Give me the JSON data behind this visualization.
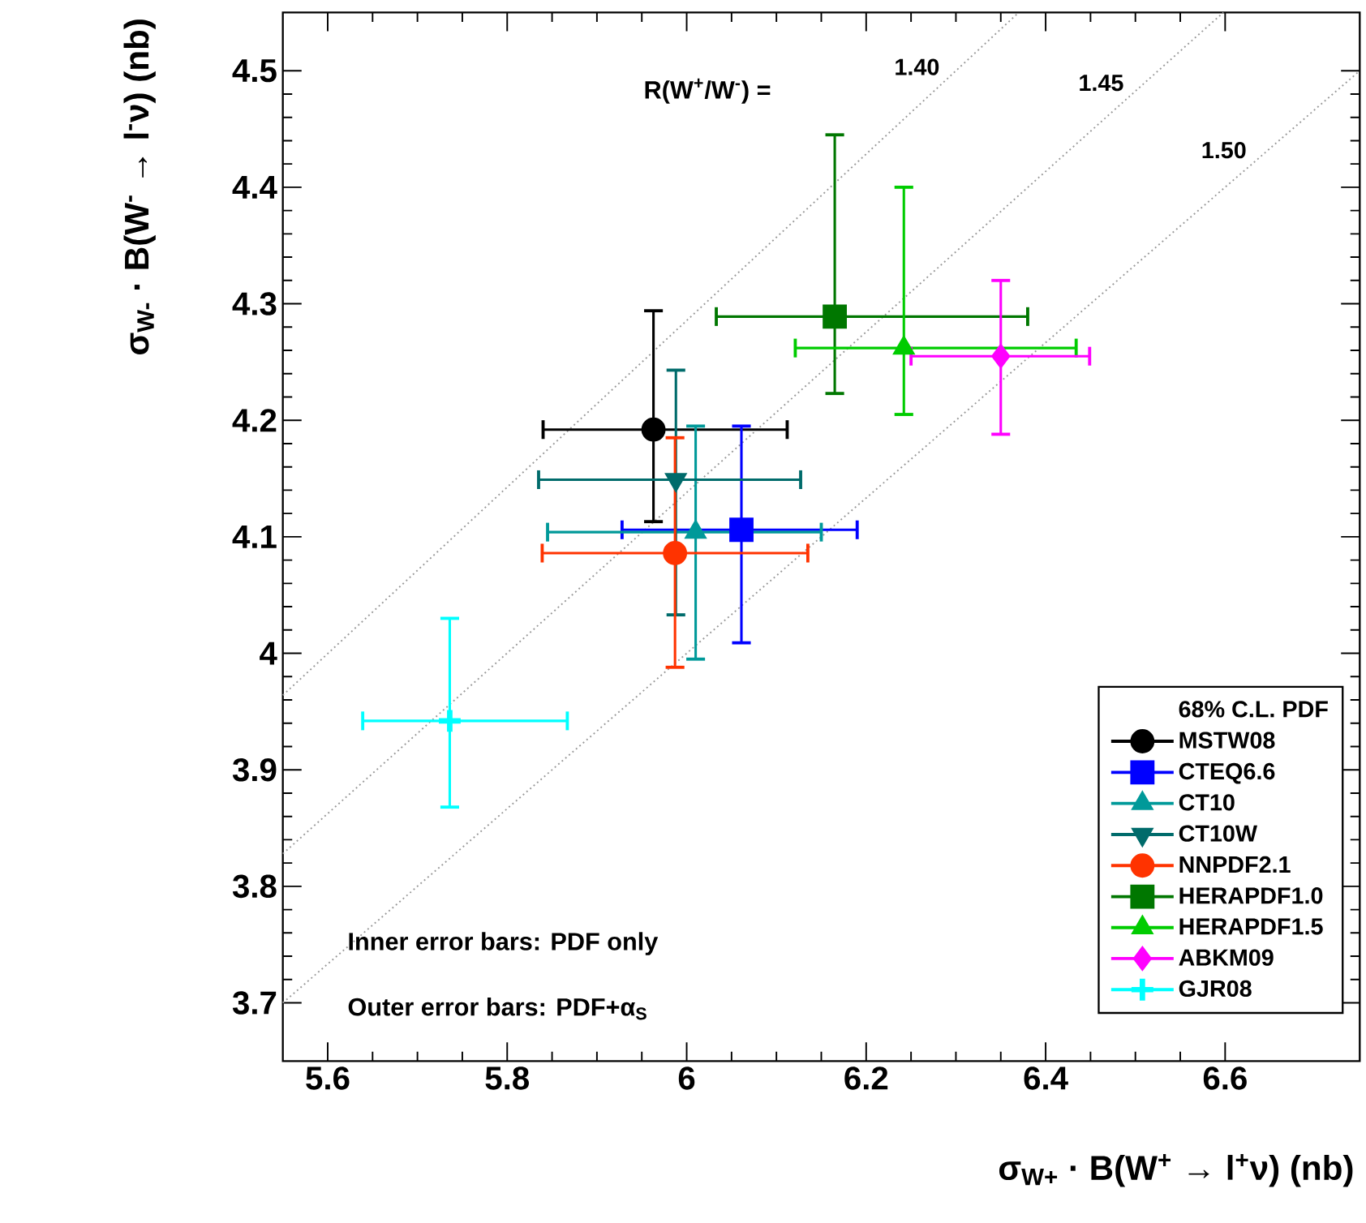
{
  "chart_data": {
    "type": "scatter",
    "xlabel": "σ$_{W+}$ · B(W$^{+}$ → l$^{+}$ν)  (nb)",
    "ylabel": "σ$_{W-}$ · B(W$^{-}$ → l$^{-}$ν)  (nb)",
    "xlim": [
      5.55,
      6.75
    ],
    "ylim": [
      3.65,
      4.55
    ],
    "xticks": [
      5.6,
      5.8,
      6,
      6.2,
      6.4,
      6.6
    ],
    "yticks": [
      3.7,
      3.8,
      3.9,
      4,
      4.1,
      4.2,
      4.3,
      4.4,
      4.5
    ],
    "grid": false,
    "legend": "bottom right",
    "legend_title": "68% C.L. PDF",
    "annotations": [
      "R(W$^{+}$/W$^{-}$) =",
      "Inner error bars: PDF only",
      "Outer error bars: PDF+α$_{S}$"
    ],
    "series": [
      {
        "name": "1.40",
        "type": "line",
        "color": "#999999",
        "line_style": "dotted",
        "marker": "none",
        "x": [
          5.55,
          6.37
        ],
        "values": [
          3.964,
          4.55
        ]
      },
      {
        "name": "1.45",
        "type": "line",
        "color": "#999999",
        "line_style": "dotted",
        "marker": "none",
        "x": [
          5.55,
          6.598
        ],
        "values": [
          3.828,
          4.55
        ]
      },
      {
        "name": "1.50",
        "type": "line",
        "color": "#999999",
        "line_style": "dotted",
        "marker": "none",
        "x": [
          5.55,
          6.75
        ],
        "values": [
          3.7,
          4.5
        ]
      },
      {
        "name": "MSTW08",
        "color": "#000000",
        "marker": "circle",
        "x": [
          5.963
        ],
        "values": [
          4.192
        ],
        "xerrors": [
          [
            5.84,
            6.112
          ]
        ],
        "errors": [
          [
            4.113,
            4.294
          ]
        ]
      },
      {
        "name": "CTEQ6.6",
        "color": "#0000ff",
        "marker": "square",
        "x": [
          6.061
        ],
        "values": [
          4.106
        ],
        "xerrors": [
          [
            5.928,
            6.19
          ]
        ],
        "errors": [
          [
            4.009,
            4.195
          ]
        ]
      },
      {
        "name": "CT10",
        "color": "#009999",
        "marker": "triangle",
        "x": [
          6.01
        ],
        "values": [
          4.104
        ],
        "xerrors": [
          [
            5.845,
            6.15
          ]
        ],
        "errors": [
          [
            3.995,
            4.195
          ]
        ]
      },
      {
        "name": "CT10W",
        "color": "#006b6b",
        "marker": "triangle-down",
        "x": [
          5.988
        ],
        "values": [
          4.149
        ],
        "xerrors": [
          [
            5.835,
            6.127
          ]
        ],
        "errors": [
          [
            4.033,
            4.243
          ]
        ]
      },
      {
        "name": "NNPDF2.1",
        "color": "#ff3300",
        "marker": "circle",
        "x": [
          5.987
        ],
        "values": [
          4.086
        ],
        "xerrors": [
          [
            5.839,
            6.135
          ]
        ],
        "errors": [
          [
            3.988,
            4.185
          ]
        ]
      },
      {
        "name": "HERAPDF1.0",
        "color": "#007700",
        "marker": "square",
        "x": [
          6.165
        ],
        "values": [
          4.289
        ],
        "xerrors": [
          [
            6.033,
            6.38
          ]
        ],
        "errors": [
          [
            4.223,
            4.445
          ]
        ]
      },
      {
        "name": "HERAPDF1.5",
        "color": "#00cc00",
        "marker": "triangle",
        "x": [
          6.242
        ],
        "values": [
          4.262
        ],
        "xerrors": [
          [
            6.121,
            6.434
          ]
        ],
        "errors": [
          [
            4.205,
            4.4
          ]
        ]
      },
      {
        "name": "ABKM09",
        "color": "#ff00ff",
        "marker": "diamond",
        "x": [
          6.35
        ],
        "values": [
          4.255
        ],
        "xerrors": [
          [
            6.25,
            6.449
          ]
        ],
        "errors": [
          [
            4.188,
            4.32
          ]
        ]
      },
      {
        "name": "GJR08",
        "color": "#00ffff",
        "marker": "cross",
        "x": [
          5.736
        ],
        "values": [
          3.942
        ],
        "xerrors": [
          [
            5.639,
            5.867
          ]
        ],
        "errors": [
          [
            3.868,
            4.03
          ]
        ]
      }
    ]
  }
}
